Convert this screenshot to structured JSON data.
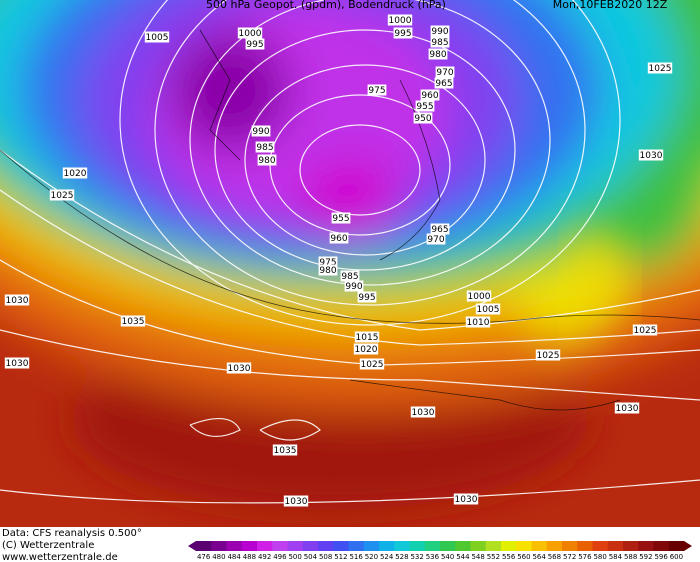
{
  "header": {
    "title": "500 hPa Geopot. (gpdm), Bodendruck (hPa)",
    "date": "Mon,10FEB2020 12Z"
  },
  "isobar_labels": [
    1000,
    995,
    1000,
    995,
    1005,
    990,
    985,
    980,
    970,
    965,
    975,
    960,
    955,
    950,
    1025,
    990,
    985,
    980,
    1030,
    1020,
    1025,
    955,
    965,
    970,
    960,
    975,
    980,
    985,
    990,
    995,
    1000,
    1005,
    1010,
    1030,
    1035,
    1015,
    1020,
    1025,
    1025,
    1030,
    1025,
    1030,
    1030,
    1030,
    1035,
    1030,
    1030
  ],
  "footer": {
    "lines": [
      "Data: CFS reanalysis 0.500°",
      "(C) Wetterzentrale",
      "www.wetterzentrale.de"
    ]
  },
  "colorbar": {
    "labels": [
      476,
      480,
      484,
      488,
      492,
      496,
      500,
      504,
      508,
      512,
      516,
      520,
      524,
      528,
      532,
      536,
      540,
      544,
      548,
      552,
      556,
      560,
      564,
      568,
      572,
      576,
      580,
      584,
      588,
      592,
      596,
      600
    ],
    "colors": [
      "#5a0070",
      "#7a0090",
      "#9a00b0",
      "#b800d0",
      "#d020e8",
      "#c040f0",
      "#a040f0",
      "#8040f0",
      "#6040f0",
      "#4050f0",
      "#3070f0",
      "#2090f0",
      "#10b0e8",
      "#10c8d8",
      "#10d0b0",
      "#20d080",
      "#30c850",
      "#50c830",
      "#80d020",
      "#b0e020",
      "#e0f000",
      "#f8e000",
      "#f8c000",
      "#f8a000",
      "#f08000",
      "#e86000",
      "#e04010",
      "#c83010",
      "#b02010",
      "#981010",
      "#800808",
      "#680000"
    ]
  }
}
